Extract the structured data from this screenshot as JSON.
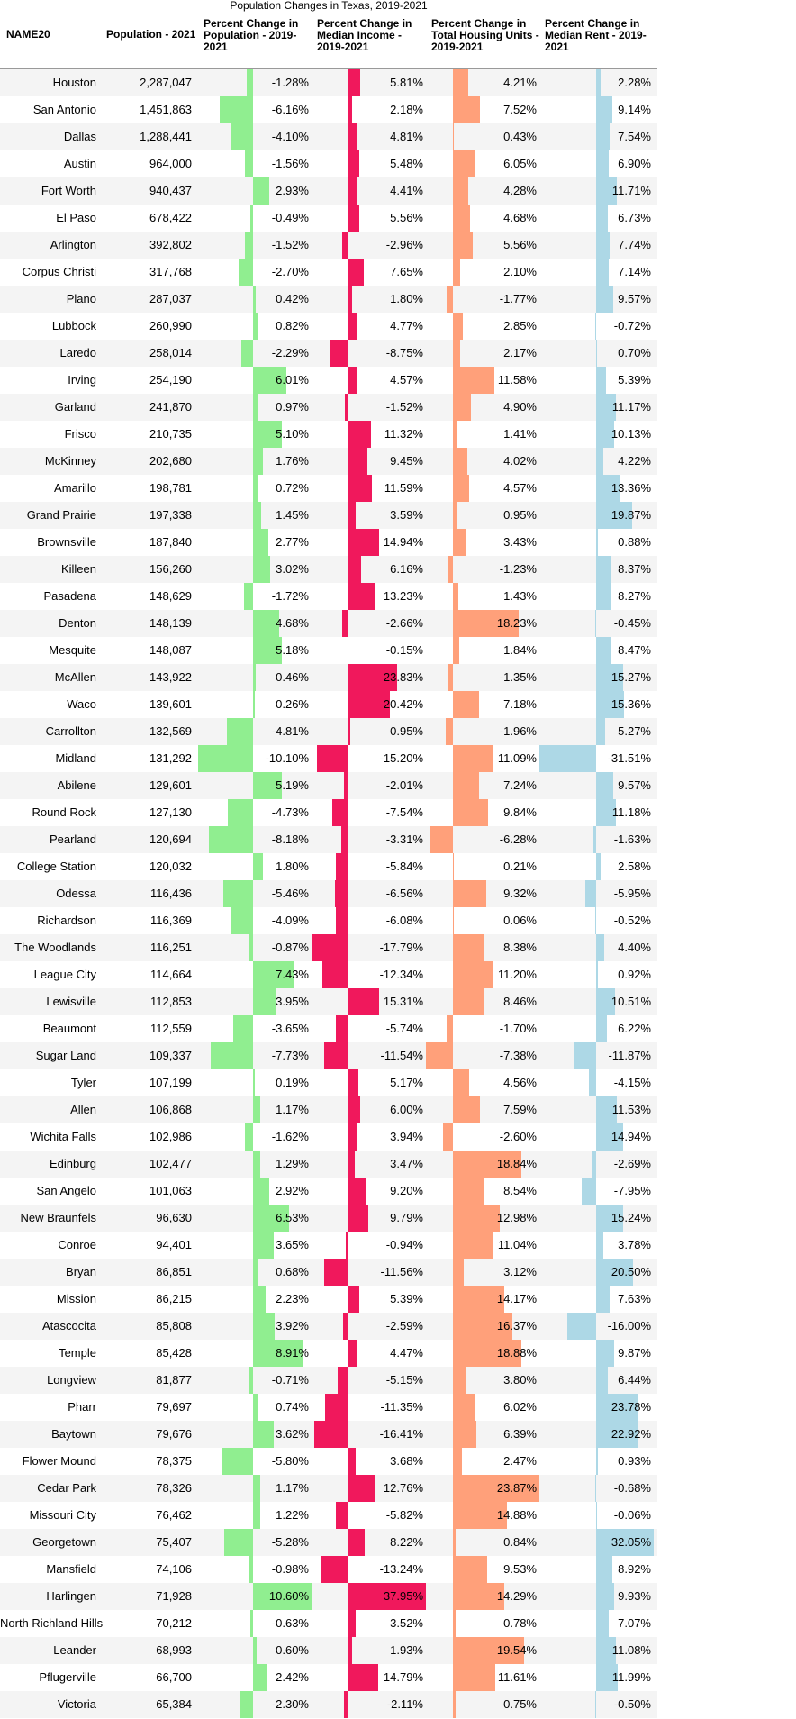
{
  "chart_data": {
    "type": "table",
    "title": "Population Changes in Texas, 2019-2021",
    "columns": [
      "NAME20",
      "Population - 2021",
      "Percent Change in Population - 2019-2021",
      "Percent Change in Median Income - 2019-2021",
      "Percent Change in Total Housing Units - 2019-2021",
      "Percent Change in Median Rent - 2019-2021"
    ],
    "bar_colors": {
      "population": "#90ee90",
      "income": "#f0185c",
      "housing": "#ffa07a",
      "rent": "#add8e6"
    },
    "rows": [
      {
        "name": "Houston",
        "population": "2,287,047",
        "pop_change": -1.28,
        "income_change": 5.81,
        "housing_change": 4.21,
        "rent_change": 2.28
      },
      {
        "name": "San Antonio",
        "population": "1,451,863",
        "pop_change": -6.16,
        "income_change": 2.18,
        "housing_change": 7.52,
        "rent_change": 9.14
      },
      {
        "name": "Dallas",
        "population": "1,288,441",
        "pop_change": -4.1,
        "income_change": 4.81,
        "housing_change": 0.43,
        "rent_change": 7.54
      },
      {
        "name": "Austin",
        "population": "964,000",
        "pop_change": -1.56,
        "income_change": 5.48,
        "housing_change": 6.05,
        "rent_change": 6.9
      },
      {
        "name": "Fort Worth",
        "population": "940,437",
        "pop_change": 2.93,
        "income_change": 4.41,
        "housing_change": 4.28,
        "rent_change": 11.71
      },
      {
        "name": "El Paso",
        "population": "678,422",
        "pop_change": -0.49,
        "income_change": 5.56,
        "housing_change": 4.68,
        "rent_change": 6.73
      },
      {
        "name": "Arlington",
        "population": "392,802",
        "pop_change": -1.52,
        "income_change": -2.96,
        "housing_change": 5.56,
        "rent_change": 7.74
      },
      {
        "name": "Corpus Christi",
        "population": "317,768",
        "pop_change": -2.7,
        "income_change": 7.65,
        "housing_change": 2.1,
        "rent_change": 7.14
      },
      {
        "name": "Plano",
        "population": "287,037",
        "pop_change": 0.42,
        "income_change": 1.8,
        "housing_change": -1.77,
        "rent_change": 9.57
      },
      {
        "name": "Lubbock",
        "population": "260,990",
        "pop_change": 0.82,
        "income_change": 4.77,
        "housing_change": 2.85,
        "rent_change": -0.72
      },
      {
        "name": "Laredo",
        "population": "258,014",
        "pop_change": -2.29,
        "income_change": -8.75,
        "housing_change": 2.17,
        "rent_change": 0.7
      },
      {
        "name": "Irving",
        "population": "254,190",
        "pop_change": 6.01,
        "income_change": 4.57,
        "housing_change": 11.58,
        "rent_change": 5.39
      },
      {
        "name": "Garland",
        "population": "241,870",
        "pop_change": 0.97,
        "income_change": -1.52,
        "housing_change": 4.9,
        "rent_change": 11.17
      },
      {
        "name": "Frisco",
        "population": "210,735",
        "pop_change": 5.1,
        "income_change": 11.32,
        "housing_change": 1.41,
        "rent_change": 10.13
      },
      {
        "name": "McKinney",
        "population": "202,680",
        "pop_change": 1.76,
        "income_change": 9.45,
        "housing_change": 4.02,
        "rent_change": 4.22
      },
      {
        "name": "Amarillo",
        "population": "198,781",
        "pop_change": 0.72,
        "income_change": 11.59,
        "housing_change": 4.57,
        "rent_change": 13.36
      },
      {
        "name": "Grand Prairie",
        "population": "197,338",
        "pop_change": 1.45,
        "income_change": 3.59,
        "housing_change": 0.95,
        "rent_change": 19.87
      },
      {
        "name": "Brownsville",
        "population": "187,840",
        "pop_change": 2.77,
        "income_change": 14.94,
        "housing_change": 3.43,
        "rent_change": 0.88
      },
      {
        "name": "Killeen",
        "population": "156,260",
        "pop_change": 3.02,
        "income_change": 6.16,
        "housing_change": -1.23,
        "rent_change": 8.37
      },
      {
        "name": "Pasadena",
        "population": "148,629",
        "pop_change": -1.72,
        "income_change": 13.23,
        "housing_change": 1.43,
        "rent_change": 8.27
      },
      {
        "name": "Denton",
        "population": "148,139",
        "pop_change": 4.68,
        "income_change": -2.66,
        "housing_change": 18.23,
        "rent_change": -0.45
      },
      {
        "name": "Mesquite",
        "population": "148,087",
        "pop_change": 5.18,
        "income_change": -0.15,
        "housing_change": 1.84,
        "rent_change": 8.47
      },
      {
        "name": "McAllen",
        "population": "143,922",
        "pop_change": 0.46,
        "income_change": 23.83,
        "housing_change": -1.35,
        "rent_change": 15.27
      },
      {
        "name": "Waco",
        "population": "139,601",
        "pop_change": 0.26,
        "income_change": 20.42,
        "housing_change": 7.18,
        "rent_change": 15.36
      },
      {
        "name": "Carrollton",
        "population": "132,569",
        "pop_change": -4.81,
        "income_change": 0.95,
        "housing_change": -1.96,
        "rent_change": 5.27
      },
      {
        "name": "Midland",
        "population": "131,292",
        "pop_change": -10.1,
        "income_change": -15.2,
        "housing_change": 11.09,
        "rent_change": -31.51
      },
      {
        "name": "Abilene",
        "population": "129,601",
        "pop_change": 5.19,
        "income_change": -2.01,
        "housing_change": 7.24,
        "rent_change": 9.57
      },
      {
        "name": "Round Rock",
        "population": "127,130",
        "pop_change": -4.73,
        "income_change": -7.54,
        "housing_change": 9.84,
        "rent_change": 11.18
      },
      {
        "name": "Pearland",
        "population": "120,694",
        "pop_change": -8.18,
        "income_change": -3.31,
        "housing_change": -6.28,
        "rent_change": -1.63
      },
      {
        "name": "College Station",
        "population": "120,032",
        "pop_change": 1.8,
        "income_change": -5.84,
        "housing_change": 0.21,
        "rent_change": 2.58
      },
      {
        "name": "Odessa",
        "population": "116,436",
        "pop_change": -5.46,
        "income_change": -6.56,
        "housing_change": 9.32,
        "rent_change": -5.95
      },
      {
        "name": "Richardson",
        "population": "116,369",
        "pop_change": -4.09,
        "income_change": -6.08,
        "housing_change": 0.06,
        "rent_change": -0.52
      },
      {
        "name": "The Woodlands",
        "population": "116,251",
        "pop_change": -0.87,
        "income_change": -17.79,
        "housing_change": 8.38,
        "rent_change": 4.4
      },
      {
        "name": "League City",
        "population": "114,664",
        "pop_change": 7.43,
        "income_change": -12.34,
        "housing_change": 11.2,
        "rent_change": 0.92
      },
      {
        "name": "Lewisville",
        "population": "112,853",
        "pop_change": 3.95,
        "income_change": 15.31,
        "housing_change": 8.46,
        "rent_change": 10.51
      },
      {
        "name": "Beaumont",
        "population": "112,559",
        "pop_change": -3.65,
        "income_change": -5.74,
        "housing_change": -1.7,
        "rent_change": 6.22
      },
      {
        "name": "Sugar Land",
        "population": "109,337",
        "pop_change": -7.73,
        "income_change": -11.54,
        "housing_change": -7.38,
        "rent_change": -11.87
      },
      {
        "name": "Tyler",
        "population": "107,199",
        "pop_change": 0.19,
        "income_change": 5.17,
        "housing_change": 4.56,
        "rent_change": -4.15
      },
      {
        "name": "Allen",
        "population": "106,868",
        "pop_change": 1.17,
        "income_change": 6.0,
        "housing_change": 7.59,
        "rent_change": 11.53
      },
      {
        "name": "Wichita Falls",
        "population": "102,986",
        "pop_change": -1.62,
        "income_change": 3.94,
        "housing_change": -2.6,
        "rent_change": 14.94
      },
      {
        "name": "Edinburg",
        "population": "102,477",
        "pop_change": 1.29,
        "income_change": 3.47,
        "housing_change": 18.84,
        "rent_change": -2.69
      },
      {
        "name": "San Angelo",
        "population": "101,063",
        "pop_change": 2.92,
        "income_change": 9.2,
        "housing_change": 8.54,
        "rent_change": -7.95
      },
      {
        "name": "New Braunfels",
        "population": "96,630",
        "pop_change": 6.53,
        "income_change": 9.79,
        "housing_change": 12.98,
        "rent_change": 15.24
      },
      {
        "name": "Conroe",
        "population": "94,401",
        "pop_change": 3.65,
        "income_change": -0.94,
        "housing_change": 11.04,
        "rent_change": 3.78
      },
      {
        "name": "Bryan",
        "population": "86,851",
        "pop_change": 0.68,
        "income_change": -11.56,
        "housing_change": 3.12,
        "rent_change": 20.5
      },
      {
        "name": "Mission",
        "population": "86,215",
        "pop_change": 2.23,
        "income_change": 5.39,
        "housing_change": 14.17,
        "rent_change": 7.63
      },
      {
        "name": "Atascocita",
        "population": "85,808",
        "pop_change": 3.92,
        "income_change": -2.59,
        "housing_change": 16.37,
        "rent_change": -16.0
      },
      {
        "name": "Temple",
        "population": "85,428",
        "pop_change": 8.91,
        "income_change": 4.47,
        "housing_change": 18.88,
        "rent_change": 9.87
      },
      {
        "name": "Longview",
        "population": "81,877",
        "pop_change": -0.71,
        "income_change": -5.15,
        "housing_change": 3.8,
        "rent_change": 6.44
      },
      {
        "name": "Pharr",
        "population": "79,697",
        "pop_change": 0.74,
        "income_change": -11.35,
        "housing_change": 6.02,
        "rent_change": 23.78
      },
      {
        "name": "Baytown",
        "population": "79,676",
        "pop_change": 3.62,
        "income_change": -16.41,
        "housing_change": 6.39,
        "rent_change": 22.92
      },
      {
        "name": "Flower Mound",
        "population": "78,375",
        "pop_change": -5.8,
        "income_change": 3.68,
        "housing_change": 2.47,
        "rent_change": 0.93
      },
      {
        "name": "Cedar Park",
        "population": "78,326",
        "pop_change": 1.17,
        "income_change": 12.76,
        "housing_change": 23.87,
        "rent_change": -0.68
      },
      {
        "name": "Missouri City",
        "population": "76,462",
        "pop_change": 1.22,
        "income_change": -5.82,
        "housing_change": 14.88,
        "rent_change": -0.06
      },
      {
        "name": "Georgetown",
        "population": "75,407",
        "pop_change": -5.28,
        "income_change": 8.22,
        "housing_change": 0.84,
        "rent_change": 32.05
      },
      {
        "name": "Mansfield",
        "population": "74,106",
        "pop_change": -0.98,
        "income_change": -13.24,
        "housing_change": 9.53,
        "rent_change": 8.92
      },
      {
        "name": "Harlingen",
        "population": "71,928",
        "pop_change": 10.6,
        "income_change": 37.95,
        "housing_change": 14.29,
        "rent_change": 9.93
      },
      {
        "name": "North Richland Hills",
        "population": "70,212",
        "pop_change": -0.63,
        "income_change": 3.52,
        "housing_change": 0.78,
        "rent_change": 7.07
      },
      {
        "name": "Leander",
        "population": "68,993",
        "pop_change": 0.6,
        "income_change": 1.93,
        "housing_change": 19.54,
        "rent_change": 11.08
      },
      {
        "name": "Pflugerville",
        "population": "66,700",
        "pop_change": 2.42,
        "income_change": 14.79,
        "housing_change": 11.61,
        "rent_change": 11.99
      },
      {
        "name": "Victoria",
        "population": "65,384",
        "pop_change": -2.3,
        "income_change": -2.11,
        "housing_change": 0.75,
        "rent_change": -0.5
      }
    ]
  }
}
